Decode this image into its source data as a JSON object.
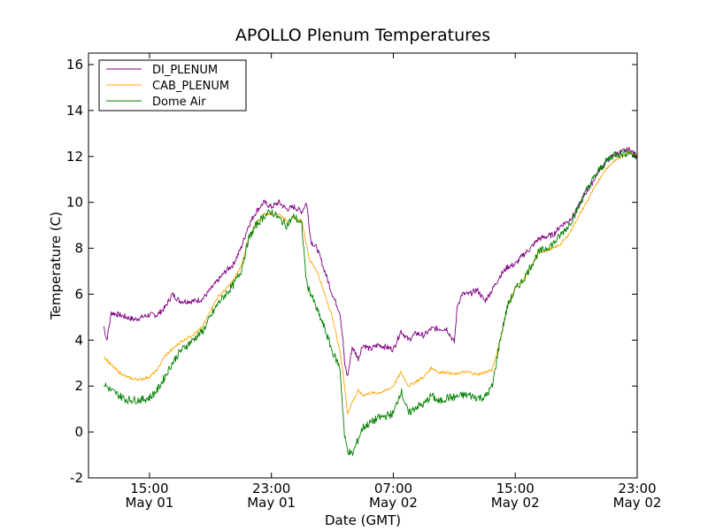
{
  "chart_data": {
    "type": "line",
    "title": "APOLLO Plenum Temperatures",
    "xlabel": "Date (GMT)",
    "ylabel": "Temperature (C)",
    "xlim": [
      11.0,
      47.0
    ],
    "ylim": [
      -2,
      16.5
    ],
    "yticks": [
      -2,
      0,
      2,
      4,
      6,
      8,
      10,
      12,
      14,
      16
    ],
    "ytick_labels": [
      "-2",
      "0",
      "2",
      "4",
      "6",
      "8",
      "10",
      "12",
      "14",
      "16"
    ],
    "xticks": [
      {
        "value": 15,
        "time": "15:00",
        "date": "May 01"
      },
      {
        "value": 23,
        "time": "23:00",
        "date": "May 01"
      },
      {
        "value": 31,
        "time": "07:00",
        "date": "May 02"
      },
      {
        "value": 39,
        "time": "15:00",
        "date": "May 02"
      },
      {
        "value": 47,
        "time": "23:00",
        "date": "May 02"
      }
    ],
    "legend_position": "top-left",
    "series": [
      {
        "name": "DI_PLENUM",
        "color": "#800080",
        "x": [
          12.0,
          12.2,
          12.5,
          13.0,
          13.5,
          14.0,
          14.5,
          15.0,
          15.5,
          16.0,
          16.5,
          17.0,
          17.5,
          18.0,
          18.5,
          19.0,
          19.5,
          20.0,
          20.5,
          21.0,
          21.5,
          22.0,
          22.5,
          23.0,
          23.5,
          24.0,
          24.5,
          25.0,
          25.3,
          25.6,
          26.0,
          26.5,
          27.0,
          27.5,
          27.7,
          27.8,
          28.0,
          28.3,
          28.7,
          29.0,
          29.5,
          30.0,
          30.5,
          31.0,
          31.5,
          32.0,
          32.5,
          33.0,
          33.5,
          34.0,
          34.5,
          35.0,
          35.2,
          35.5,
          36.0,
          36.5,
          37.0,
          37.5,
          38.0,
          38.5,
          39.0,
          39.5,
          40.0,
          40.5,
          41.0,
          41.5,
          42.0,
          42.5,
          43.0,
          43.5,
          44.0,
          44.5,
          45.0,
          45.5,
          46.0,
          46.5,
          47.0
        ],
        "y": [
          4.6,
          4.0,
          5.2,
          5.1,
          5.0,
          4.9,
          5.0,
          5.1,
          5.1,
          5.4,
          6.0,
          5.7,
          5.7,
          5.7,
          5.8,
          6.2,
          6.6,
          7.0,
          7.3,
          8.0,
          9.0,
          9.6,
          10.0,
          9.8,
          10.0,
          9.7,
          9.8,
          9.6,
          10.0,
          8.3,
          8.0,
          7.0,
          6.0,
          5.2,
          4.0,
          3.0,
          2.4,
          3.7,
          3.2,
          3.8,
          3.6,
          3.8,
          3.7,
          3.6,
          4.4,
          4.0,
          4.3,
          4.2,
          4.5,
          4.5,
          4.5,
          3.9,
          5.5,
          6.0,
          6.0,
          6.2,
          5.7,
          6.2,
          6.8,
          7.2,
          7.3,
          7.7,
          8.0,
          8.4,
          8.5,
          8.6,
          9.0,
          9.2,
          9.6,
          10.3,
          10.8,
          11.4,
          11.8,
          12.1,
          12.2,
          12.3,
          12.0
        ]
      },
      {
        "name": "CAB_PLENUM",
        "color": "#ffa500",
        "x": [
          12.0,
          12.5,
          13.0,
          13.5,
          14.0,
          14.5,
          15.0,
          15.5,
          16.0,
          16.5,
          17.0,
          17.5,
          18.0,
          18.5,
          19.0,
          19.5,
          20.0,
          20.5,
          21.0,
          21.5,
          22.0,
          22.5,
          23.0,
          23.5,
          24.0,
          24.5,
          25.0,
          25.5,
          26.0,
          26.5,
          27.0,
          27.5,
          27.7,
          28.0,
          28.3,
          28.7,
          29.0,
          29.5,
          30.0,
          30.5,
          31.0,
          31.5,
          32.0,
          32.5,
          33.0,
          33.5,
          34.0,
          34.5,
          35.0,
          35.5,
          36.0,
          36.5,
          37.0,
          37.5,
          38.0,
          38.5,
          39.0,
          39.5,
          40.0,
          40.5,
          41.0,
          41.5,
          42.0,
          42.5,
          43.0,
          43.5,
          44.0,
          44.5,
          45.0,
          45.5,
          46.0,
          46.5,
          47.0
        ],
        "y": [
          3.3,
          2.9,
          2.6,
          2.4,
          2.3,
          2.3,
          2.4,
          2.7,
          3.3,
          3.6,
          3.9,
          4.1,
          4.3,
          4.6,
          5.3,
          5.9,
          6.2,
          6.6,
          7.2,
          8.4,
          9.1,
          9.5,
          9.5,
          9.5,
          9.2,
          9.3,
          9.2,
          7.5,
          7.0,
          6.0,
          5.0,
          3.5,
          2.6,
          0.8,
          1.3,
          1.8,
          1.6,
          1.7,
          1.7,
          1.8,
          2.0,
          2.6,
          2.0,
          2.2,
          2.4,
          2.8,
          2.6,
          2.6,
          2.5,
          2.6,
          2.6,
          2.5,
          2.6,
          2.7,
          4.0,
          5.5,
          6.3,
          6.6,
          7.1,
          7.8,
          7.9,
          8.0,
          8.2,
          8.6,
          9.2,
          9.8,
          10.4,
          11.0,
          11.5,
          11.8,
          12.0,
          12.2,
          12.0
        ]
      },
      {
        "name": "Dome Air",
        "color": "#008000",
        "x": [
          12.0,
          12.5,
          13.0,
          13.5,
          14.0,
          14.5,
          15.0,
          15.5,
          16.0,
          16.5,
          17.0,
          17.5,
          18.0,
          18.5,
          19.0,
          19.5,
          20.0,
          20.5,
          21.0,
          21.5,
          22.0,
          22.5,
          23.0,
          23.5,
          24.0,
          24.5,
          25.0,
          25.3,
          25.6,
          26.0,
          26.5,
          27.0,
          27.5,
          27.8,
          28.0,
          28.3,
          28.7,
          29.0,
          29.5,
          30.0,
          30.5,
          31.0,
          31.5,
          32.0,
          32.5,
          33.0,
          33.5,
          34.0,
          34.5,
          35.0,
          35.5,
          36.0,
          36.5,
          37.0,
          37.5,
          38.0,
          38.5,
          39.0,
          39.5,
          40.0,
          40.5,
          41.0,
          41.5,
          42.0,
          42.5,
          43.0,
          43.5,
          44.0,
          44.5,
          45.0,
          45.5,
          46.0,
          46.5,
          47.0
        ],
        "y": [
          2.1,
          1.8,
          1.6,
          1.4,
          1.4,
          1.4,
          1.5,
          1.8,
          2.4,
          3.0,
          3.5,
          3.8,
          4.1,
          4.4,
          5.0,
          5.6,
          6.0,
          6.4,
          7.0,
          8.4,
          9.0,
          9.4,
          9.6,
          9.3,
          9.0,
          9.4,
          9.0,
          6.5,
          6.0,
          5.3,
          4.5,
          3.5,
          2.8,
          -0.2,
          -0.8,
          -1.0,
          -0.3,
          0.2,
          0.4,
          0.6,
          0.7,
          0.8,
          1.8,
          0.8,
          1.1,
          1.2,
          1.6,
          1.3,
          1.5,
          1.5,
          1.6,
          1.6,
          1.5,
          1.5,
          2.0,
          4.0,
          5.5,
          6.2,
          6.6,
          7.2,
          7.8,
          8.0,
          8.2,
          8.6,
          9.0,
          9.6,
          10.3,
          10.9,
          11.4,
          11.8,
          12.1,
          12.1,
          12.2,
          11.9
        ]
      }
    ]
  }
}
